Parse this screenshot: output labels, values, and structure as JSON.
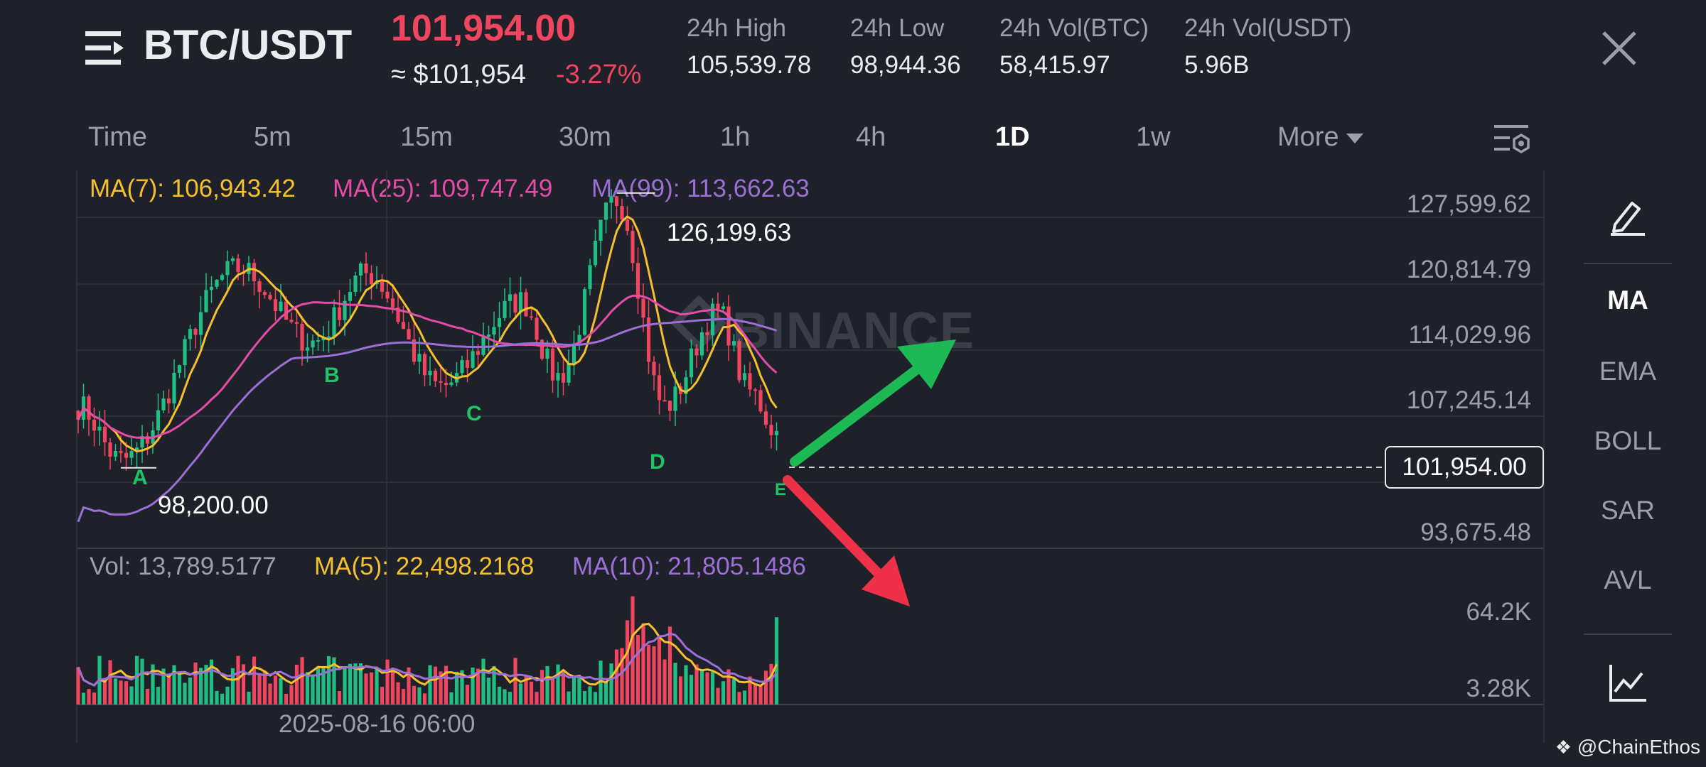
{
  "header": {
    "pair": "BTC/USDT",
    "last_price": "101,954.00",
    "usd_price": "≈ $101,954",
    "change_pct": "-3.27%",
    "stats": [
      {
        "label": "24h High",
        "value": "105,539.78"
      },
      {
        "label": "24h Low",
        "value": "98,944.36"
      },
      {
        "label": "24h Vol(BTC)",
        "value": "58,415.97"
      },
      {
        "label": "24h Vol(USDT)",
        "value": "5.96B"
      }
    ],
    "menu_icon": "menu-icon",
    "close_icon": "close-icon"
  },
  "timeframes": {
    "items": [
      "Time",
      "5m",
      "15m",
      "30m",
      "1h",
      "4h",
      "1D",
      "1w"
    ],
    "active": "1D",
    "more_label": "More",
    "settings_icon": "chart-settings-icon"
  },
  "indicators": {
    "ma7": "MA(7): 106,943.42",
    "ma25": "MA(25): 109,747.49",
    "ma99": "MA(99): 113,662.63",
    "vol": "Vol: 13,789.5177",
    "vol_ma5": "MA(5): 22,498.2168",
    "vol_ma10": "MA(10): 21,805.1486"
  },
  "colors": {
    "up": "#1fbf83",
    "down": "#f0455e",
    "ma7": "#f5c02e",
    "ma25": "#e54ca8",
    "ma99": "#9b6fd6",
    "arrow_up": "#1db954",
    "arrow_down": "#ee3148"
  },
  "price_axis": [
    "127,599.62",
    "120,814.79",
    "114,029.96",
    "107,245.14",
    "93,675.48"
  ],
  "current_price_tag": "101,954.00",
  "volume_axis": [
    "64.2K",
    "3.28K"
  ],
  "annotations": {
    "high": "126,199.63",
    "low": "98,200.00",
    "points": [
      "A",
      "B",
      "C",
      "D",
      "E"
    ]
  },
  "date_label": "2025-08-16 06:00",
  "watermark": "BINANCE",
  "sidebar": {
    "draw_icon": "pencil-icon",
    "items": [
      "MA",
      "EMA",
      "BOLL",
      "SAR",
      "AVL"
    ],
    "active": "MA",
    "indicator_icon": "indicator-chart-icon"
  },
  "footer": {
    "credit": "@ChainEthos"
  },
  "chart_data": {
    "type": "candlestick",
    "price_range": [
      90000,
      128500
    ],
    "volume_range": [
      0,
      70000
    ],
    "anchors": [
      {
        "label": "start",
        "index": 0,
        "price": 104500
      },
      {
        "label": "A",
        "index": 8,
        "price": 99000
      },
      {
        "label": "peak1",
        "index": 30,
        "price": 118500
      },
      {
        "label": "B",
        "index": 44,
        "price": 111000
      },
      {
        "label": "peak2",
        "index": 54,
        "price": 118000
      },
      {
        "label": "C",
        "index": 68,
        "price": 106500
      },
      {
        "label": "peak3",
        "index": 83,
        "price": 115200
      },
      {
        "label": "dip",
        "index": 90,
        "price": 107500
      },
      {
        "label": "high",
        "index": 101,
        "price": 125500
      },
      {
        "label": "D",
        "index": 110,
        "price": 104500
      },
      {
        "label": "rebound",
        "index": 120,
        "price": 114000
      },
      {
        "label": "drop",
        "index": 126,
        "price": 106000
      },
      {
        "label": "E",
        "index": 131,
        "price": 101954
      }
    ],
    "candle_count": 132,
    "high_marker": 126199.63,
    "low_marker": 98200.0
  }
}
